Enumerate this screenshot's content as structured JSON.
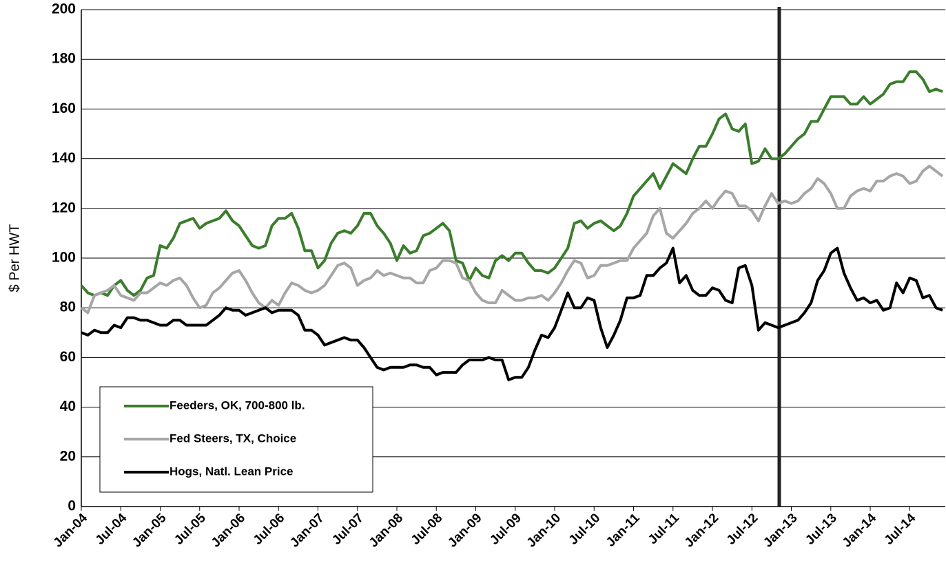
{
  "chart_data": {
    "type": "line",
    "y_label": "$ Per HWT",
    "categories": [
      "Jan-04",
      null,
      null,
      null,
      null,
      null,
      "Jul-04",
      null,
      null,
      null,
      null,
      null,
      "Jan-05",
      null,
      null,
      null,
      null,
      null,
      "Jul-05",
      null,
      null,
      null,
      null,
      null,
      "Jan-06",
      null,
      null,
      null,
      null,
      null,
      "Jul-06",
      null,
      null,
      null,
      null,
      null,
      "Jan-07",
      null,
      null,
      null,
      null,
      null,
      "Jul-07",
      null,
      null,
      null,
      null,
      null,
      "Jan-08",
      null,
      null,
      null,
      null,
      null,
      "Jul-08",
      null,
      null,
      null,
      null,
      null,
      "Jan-09",
      null,
      null,
      null,
      null,
      null,
      "Jul-09",
      null,
      null,
      null,
      null,
      null,
      "Jan-10",
      null,
      null,
      null,
      null,
      null,
      "Jul-10",
      null,
      null,
      null,
      null,
      null,
      "Jan-11",
      null,
      null,
      null,
      null,
      null,
      "Jul-11",
      null,
      null,
      null,
      null,
      null,
      "Jan-12",
      null,
      null,
      null,
      null,
      null,
      "Jul-12",
      null,
      null,
      null,
      null,
      null,
      "Jan-13",
      null,
      null,
      null,
      null,
      null,
      "Jul-13",
      null,
      null,
      null,
      null,
      null,
      "Jan-14",
      null,
      null,
      null,
      null,
      null,
      "Jul-14",
      null,
      null,
      null,
      null,
      null
    ],
    "series": [
      {
        "name": "Feeders, OK, 700-800 lb.",
        "color": "#3a7d2c",
        "values": [
          89,
          86,
          85,
          86,
          85,
          89,
          91,
          87,
          85,
          87,
          92,
          93,
          105,
          104,
          108,
          114,
          115,
          116,
          112,
          114,
          115,
          116,
          119,
          115,
          113,
          109,
          105,
          104,
          105,
          113,
          116,
          116,
          118,
          112,
          103,
          103,
          96,
          99,
          106,
          110,
          111,
          110,
          113,
          118,
          118,
          113,
          110,
          106,
          99,
          105,
          102,
          103,
          109,
          110,
          112,
          114,
          111,
          99,
          98,
          91,
          96,
          93,
          92,
          99,
          101,
          99,
          102,
          102,
          98,
          95,
          95,
          94,
          96,
          100,
          104,
          114,
          115,
          112,
          114,
          115,
          113,
          111,
          113,
          118,
          125,
          128,
          131,
          134,
          128,
          133,
          138,
          136,
          134,
          140,
          145,
          145,
          150,
          156,
          158,
          152,
          151,
          154,
          138,
          139,
          144,
          140,
          140,
          142,
          145,
          148,
          150,
          155,
          155,
          160,
          165,
          165,
          165,
          162,
          162,
          165,
          162,
          164,
          166,
          170,
          171,
          171,
          175,
          175,
          172,
          167,
          168,
          167
        ]
      },
      {
        "name": "Fed Steers, TX, Choice",
        "color": "#a6a6a6",
        "values": [
          80,
          78,
          85,
          86,
          87,
          89,
          85,
          84,
          83,
          86,
          86,
          88,
          90,
          89,
          91,
          92,
          89,
          84,
          80,
          81,
          86,
          88,
          91,
          94,
          95,
          91,
          86,
          82,
          80,
          83,
          81,
          86,
          90,
          89,
          87,
          86,
          87,
          89,
          93,
          97,
          98,
          96,
          89,
          91,
          92,
          95,
          93,
          94,
          93,
          92,
          92,
          90,
          90,
          95,
          96,
          99,
          99,
          98,
          92,
          91,
          86,
          83,
          82,
          82,
          87,
          85,
          83,
          83,
          84,
          84,
          85,
          83,
          86,
          90,
          95,
          99,
          98,
          92,
          93,
          97,
          97,
          98,
          99,
          99,
          104,
          107,
          110,
          117,
          120,
          110,
          108,
          111,
          114,
          118,
          120,
          123,
          120,
          124,
          127,
          126,
          121,
          121,
          119,
          115,
          121,
          126,
          122,
          123,
          122,
          123,
          126,
          128,
          132,
          130,
          126,
          120,
          120,
          125,
          127,
          128,
          127,
          131,
          131,
          133,
          134,
          133,
          130,
          131,
          135,
          137,
          135,
          133
        ]
      },
      {
        "name": "Hogs, Natl. Lean Price",
        "color": "#000000",
        "values": [
          70,
          69,
          71,
          70,
          70,
          73,
          72,
          76,
          76,
          75,
          75,
          74,
          73,
          73,
          75,
          75,
          73,
          73,
          73,
          73,
          75,
          77,
          80,
          79,
          79,
          77,
          78,
          79,
          80,
          78,
          79,
          79,
          79,
          77,
          71,
          71,
          69,
          65,
          66,
          67,
          68,
          67,
          67,
          64,
          60,
          56,
          55,
          56,
          56,
          56,
          57,
          57,
          56,
          56,
          53,
          54,
          54,
          54,
          57,
          59,
          59,
          59,
          60,
          59,
          59,
          51,
          52,
          52,
          56,
          63,
          69,
          68,
          72,
          79,
          86,
          80,
          80,
          84,
          83,
          72,
          64,
          69,
          75,
          84,
          84,
          85,
          93,
          93,
          96,
          98,
          104,
          90,
          93,
          87,
          85,
          85,
          88,
          87,
          83,
          82,
          96,
          97,
          89,
          71,
          74,
          73,
          72,
          73,
          74,
          75,
          78,
          82,
          91,
          95,
          102,
          104,
          94,
          88,
          83,
          84,
          82,
          83,
          79,
          80,
          90,
          86,
          92,
          91,
          84,
          85,
          80,
          79
        ]
      }
    ],
    "ylim": [
      0,
      200
    ],
    "yticks": [
      0,
      20,
      40,
      60,
      80,
      100,
      120,
      140,
      160,
      180,
      200
    ],
    "grid": true
  }
}
